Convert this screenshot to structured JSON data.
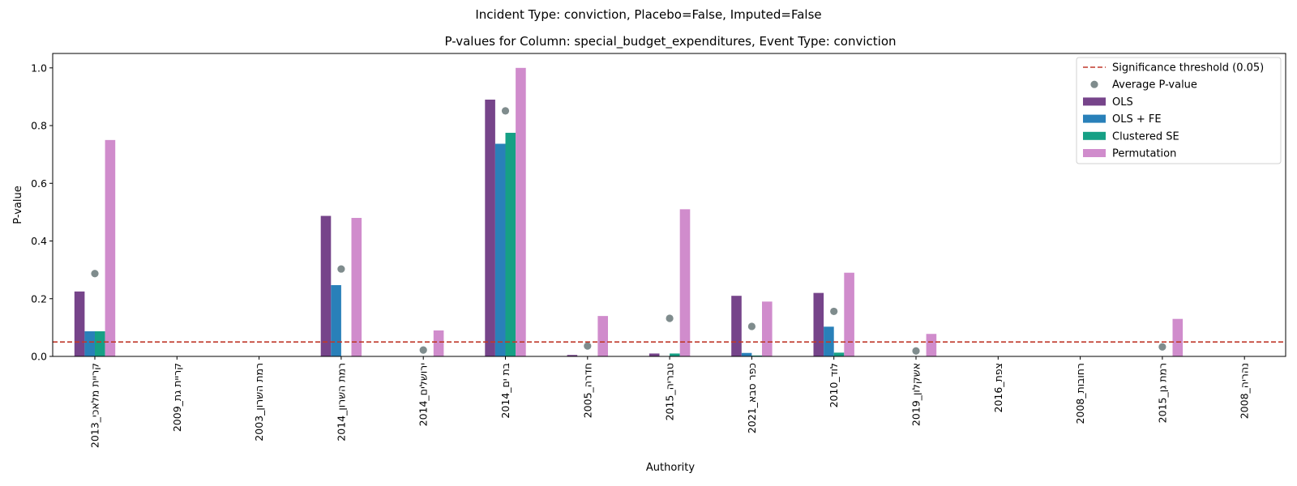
{
  "suptitle": "Incident Type: conviction, Placebo=False, Imputed=False",
  "chart_data": {
    "type": "bar",
    "title": "P-values for Column: special_budget_expenditures, Event Type: conviction",
    "xlabel": "Authority",
    "ylabel": "P-value",
    "ylim": [
      0,
      1.05
    ],
    "yticks": [
      "0.0",
      "0.2",
      "0.4",
      "0.6",
      "0.8",
      "1.0"
    ],
    "grid": false,
    "legend_position": "top-right",
    "categories": [
      "קריית מלאכי_2013",
      "קריית גת_2009",
      "רמת השרון_2003",
      "רמת השרון_2014",
      "ירושלים_2014",
      "בת ים_2014",
      "חדרה_2005",
      "טבריה_2015",
      "כפר סבא_2021",
      "לוד_2010",
      "אשקלון_2019",
      "צפת_2016",
      "רחובות_2008",
      "רמת גן_2015",
      "נהריה_2008"
    ],
    "series": [
      {
        "name": "OLS",
        "color": "#76448a",
        "values": [
          0.225,
          0,
          0,
          0.487,
          0,
          0.89,
          0.005,
          0.01,
          0.21,
          0.22,
          0,
          0,
          0,
          0,
          0
        ]
      },
      {
        "name": "OLS + FE",
        "color": "#2980b9",
        "values": [
          0.087,
          0,
          0,
          0.247,
          0,
          0.737,
          0,
          0,
          0.012,
          0.103,
          0,
          0,
          0,
          0,
          0
        ]
      },
      {
        "name": "Clustered SE",
        "color": "#16a085",
        "values": [
          0.087,
          0,
          0,
          0,
          0,
          0.775,
          0,
          0.01,
          0.003,
          0.013,
          0,
          0,
          0,
          0,
          0
        ]
      },
      {
        "name": "Permutation",
        "color": "#d08ccc",
        "values": [
          0.75,
          0,
          0,
          0.48,
          0.09,
          1.0,
          0.14,
          0.51,
          0.19,
          0.29,
          0.078,
          0,
          0,
          0.13,
          0
        ]
      }
    ],
    "average": {
      "name": "Average P-value",
      "color": "#7f8c8d",
      "values": [
        0.287,
        null,
        null,
        0.303,
        0.022,
        0.851,
        0.036,
        0.132,
        0.104,
        0.156,
        0.019,
        null,
        null,
        0.033,
        null
      ]
    },
    "threshold": {
      "name": "Significance threshold (0.05)",
      "value": 0.05,
      "color": "#c0392b"
    }
  }
}
